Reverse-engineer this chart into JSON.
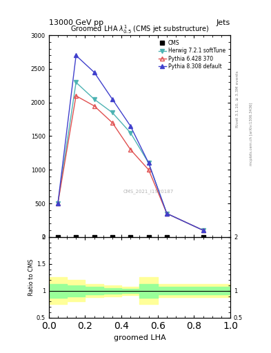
{
  "title": "Groomed LHA $\\lambda^{1}_{0.5}$ (CMS jet substructure)",
  "header_left": "13000 GeV pp",
  "header_right": "Jets",
  "right_label": "Rivet 3.1.10, ≥ 3.3M events",
  "right_label2": "mcplots.cern.ch [arXiv:1306.3436]",
  "watermark": "CMS_2021_I1920187",
  "xlabel": "groomed LHA",
  "ylabel_ratio": "Ratio to CMS",
  "x_pts": [
    0.05,
    0.15,
    0.25,
    0.35,
    0.45,
    0.55,
    0.65,
    0.85
  ],
  "herwig_y": [
    500,
    2300,
    2050,
    1850,
    1550,
    1100,
    350,
    100
  ],
  "pythia6_y": [
    500,
    2100,
    1950,
    1700,
    1300,
    1000,
    350,
    100
  ],
  "pythia8_y": [
    500,
    2700,
    2450,
    2050,
    1650,
    1100,
    350,
    100
  ],
  "cms_y": [
    0,
    0,
    0,
    0,
    0,
    0,
    0,
    0
  ],
  "herwig_color": "#4db3b3",
  "pythia6_color": "#e05050",
  "pythia8_color": "#4040cc",
  "cms_color": "#000000",
  "ratio_ylim": [
    0.5,
    2.0
  ],
  "main_ylim": [
    0,
    3000
  ],
  "main_yticks": [
    0,
    500,
    1000,
    1500,
    2000,
    2500,
    3000
  ],
  "xlim": [
    0,
    1.0
  ],
  "legend_entries": [
    "CMS",
    "Herwig 7.2.1 softTune",
    "Pythia 6.428 370",
    "Pythia 8.308 default"
  ],
  "ratio_band_x": [
    0.0,
    0.1,
    0.1,
    0.2,
    0.2,
    0.3,
    0.3,
    0.4,
    0.4,
    0.5,
    0.5,
    0.6,
    0.6,
    0.7,
    0.7,
    1.0
  ],
  "ratio_yellow_lo": [
    0.75,
    0.75,
    0.8,
    0.8,
    0.88,
    0.88,
    0.9,
    0.9,
    0.92,
    0.92,
    0.75,
    0.75,
    0.88,
    0.88,
    0.88,
    0.88
  ],
  "ratio_yellow_hi": [
    1.25,
    1.25,
    1.2,
    1.2,
    1.12,
    1.12,
    1.1,
    1.1,
    1.08,
    1.08,
    1.25,
    1.25,
    1.12,
    1.12,
    1.12,
    1.12
  ],
  "ratio_green_lo": [
    0.87,
    0.87,
    0.9,
    0.9,
    0.93,
    0.93,
    0.95,
    0.95,
    0.96,
    0.96,
    0.87,
    0.87,
    0.93,
    0.93,
    0.93,
    0.93
  ],
  "ratio_green_hi": [
    1.13,
    1.13,
    1.1,
    1.1,
    1.07,
    1.07,
    1.05,
    1.05,
    1.04,
    1.04,
    1.13,
    1.13,
    1.07,
    1.07,
    1.07,
    1.07
  ]
}
